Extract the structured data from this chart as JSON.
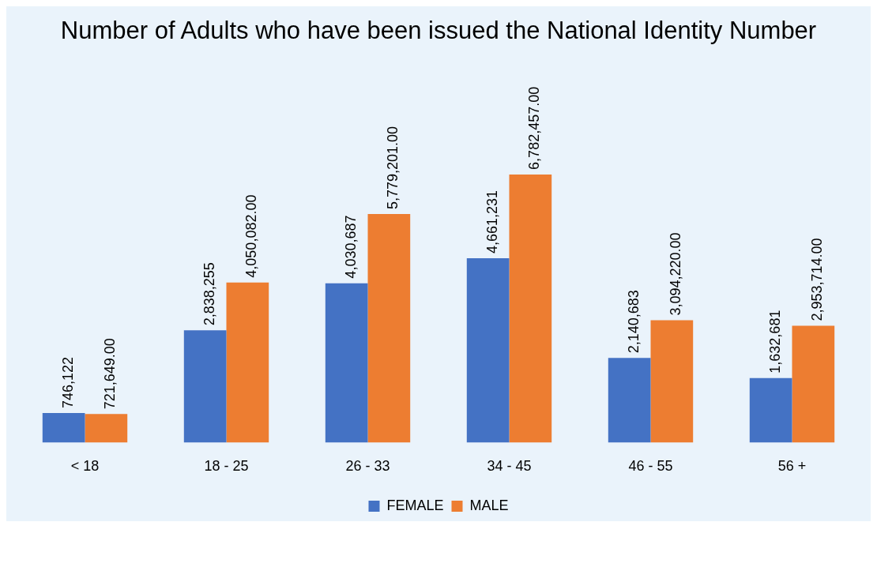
{
  "chart_data": {
    "type": "bar",
    "title": "Number of Adults who have been issued the National Identity Number",
    "categories": [
      "< 18",
      "18 - 25",
      "26 - 33",
      "34 - 45",
      "46 - 55",
      "56 +"
    ],
    "series": [
      {
        "name": "FEMALE",
        "color": "#4472c4",
        "values": [
          746122,
          2838255,
          4030687,
          4661231,
          2140683,
          1632681
        ],
        "value_labels": [
          "746,122",
          "2,838,255",
          "4,030,687",
          "4,661,231",
          "2,140,683",
          "1,632,681"
        ]
      },
      {
        "name": "MALE",
        "color": "#ed7d31",
        "values": [
          721649,
          4050082,
          5779201,
          6782457,
          3094220,
          2953714
        ],
        "value_labels": [
          "721,649.00",
          "4,050,082.00",
          "5,779,201.00",
          "6,782,457.00",
          "3,094,220.00",
          "2,953,714.00"
        ]
      }
    ],
    "legend": "bottom",
    "grid": false
  }
}
